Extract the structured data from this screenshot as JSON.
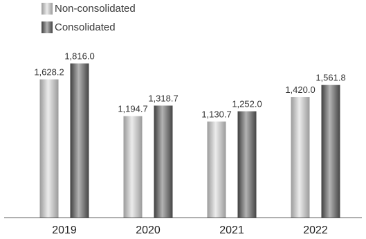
{
  "chart_data": {
    "type": "bar",
    "title": "",
    "xlabel": "",
    "ylabel": "",
    "categories": [
      "2019",
      "2020",
      "2021",
      "2022"
    ],
    "series": [
      {
        "name": "Non-consolidated",
        "values": [
          1628.2,
          1194.7,
          1130.7,
          1420.0
        ],
        "labels": [
          "1,628.2",
          "1,194.7",
          "1,130.7",
          "1,420.0"
        ],
        "colors": [
          "#9a9a9a",
          "#ececec",
          "#9a9a9a"
        ]
      },
      {
        "name": "Consolidated",
        "values": [
          1816.0,
          1318.7,
          1252.0,
          1561.8
        ],
        "labels": [
          "1,816.0",
          "1,318.7",
          "1,252.0",
          "1,561.8"
        ],
        "colors": [
          "#3e3e3e",
          "#b3b3b3",
          "#444444"
        ]
      }
    ],
    "ylim": [
      0,
      2050
    ],
    "grid": false,
    "legend_position": "top-left",
    "axis_color": "#555555"
  }
}
